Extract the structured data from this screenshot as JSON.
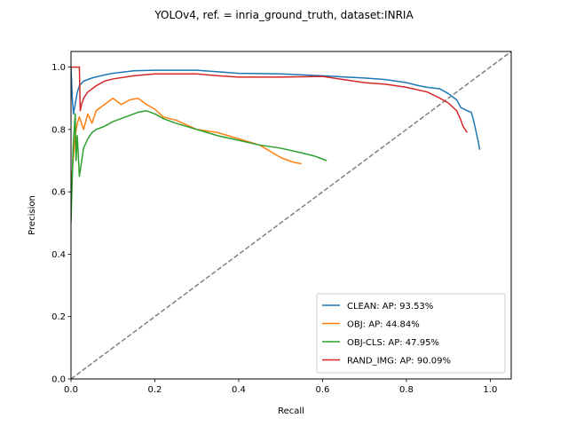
{
  "chart_data": {
    "type": "line",
    "title": "YOLOv4, ref. = inria_ground_truth, dataset:INRIA",
    "xlabel": "Recall",
    "ylabel": "Precision",
    "xlim": [
      0,
      1.05
    ],
    "ylim": [
      0,
      1.05
    ],
    "xticks": [
      "0.0",
      "0.2",
      "0.4",
      "0.6",
      "0.8",
      "1.0"
    ],
    "yticks": [
      "0.0",
      "0.2",
      "0.4",
      "0.6",
      "0.8",
      "1.0"
    ],
    "grid": false,
    "legend_position": "bottom-right",
    "reference_line": {
      "style": "dashed",
      "color": "#808080",
      "points": [
        [
          0,
          0
        ],
        [
          1.05,
          1.05
        ]
      ]
    },
    "series": [
      {
        "name": "CLEAN: AP: 93.53%",
        "color": "#1f77b4",
        "points": [
          [
            0.0,
            1.0
          ],
          [
            0.003,
            0.9
          ],
          [
            0.006,
            0.85
          ],
          [
            0.01,
            0.88
          ],
          [
            0.015,
            0.92
          ],
          [
            0.02,
            0.94
          ],
          [
            0.03,
            0.955
          ],
          [
            0.05,
            0.965
          ],
          [
            0.08,
            0.975
          ],
          [
            0.1,
            0.98
          ],
          [
            0.15,
            0.988
          ],
          [
            0.2,
            0.99
          ],
          [
            0.3,
            0.99
          ],
          [
            0.35,
            0.985
          ],
          [
            0.4,
            0.98
          ],
          [
            0.5,
            0.978
          ],
          [
            0.6,
            0.972
          ],
          [
            0.7,
            0.965
          ],
          [
            0.75,
            0.96
          ],
          [
            0.8,
            0.95
          ],
          [
            0.83,
            0.94
          ],
          [
            0.85,
            0.935
          ],
          [
            0.88,
            0.93
          ],
          [
            0.9,
            0.915
          ],
          [
            0.92,
            0.895
          ],
          [
            0.93,
            0.87
          ],
          [
            0.945,
            0.86
          ],
          [
            0.955,
            0.855
          ],
          [
            0.96,
            0.83
          ],
          [
            0.965,
            0.8
          ],
          [
            0.97,
            0.77
          ],
          [
            0.975,
            0.735
          ]
        ]
      },
      {
        "name": "OBJ: AP: 44.84%",
        "color": "#ff7f0e",
        "points": [
          [
            0.0,
            0.6
          ],
          [
            0.005,
            0.7
          ],
          [
            0.01,
            0.78
          ],
          [
            0.015,
            0.82
          ],
          [
            0.02,
            0.84
          ],
          [
            0.03,
            0.8
          ],
          [
            0.04,
            0.85
          ],
          [
            0.05,
            0.82
          ],
          [
            0.06,
            0.86
          ],
          [
            0.08,
            0.88
          ],
          [
            0.1,
            0.9
          ],
          [
            0.12,
            0.88
          ],
          [
            0.14,
            0.895
          ],
          [
            0.16,
            0.9
          ],
          [
            0.18,
            0.88
          ],
          [
            0.2,
            0.865
          ],
          [
            0.22,
            0.84
          ],
          [
            0.25,
            0.83
          ],
          [
            0.3,
            0.8
          ],
          [
            0.35,
            0.79
          ],
          [
            0.4,
            0.77
          ],
          [
            0.45,
            0.75
          ],
          [
            0.5,
            0.71
          ],
          [
            0.53,
            0.695
          ],
          [
            0.55,
            0.69
          ]
        ]
      },
      {
        "name": "OBJ-CLS: AP: 47.95%",
        "color": "#2ca02c",
        "points": [
          [
            0.0,
            0.5
          ],
          [
            0.005,
            0.74
          ],
          [
            0.01,
            0.85
          ],
          [
            0.012,
            0.7
          ],
          [
            0.015,
            0.78
          ],
          [
            0.02,
            0.65
          ],
          [
            0.03,
            0.74
          ],
          [
            0.04,
            0.77
          ],
          [
            0.05,
            0.79
          ],
          [
            0.06,
            0.8
          ],
          [
            0.08,
            0.81
          ],
          [
            0.1,
            0.825
          ],
          [
            0.12,
            0.835
          ],
          [
            0.14,
            0.845
          ],
          [
            0.16,
            0.855
          ],
          [
            0.18,
            0.86
          ],
          [
            0.2,
            0.85
          ],
          [
            0.22,
            0.835
          ],
          [
            0.25,
            0.82
          ],
          [
            0.3,
            0.8
          ],
          [
            0.35,
            0.78
          ],
          [
            0.4,
            0.765
          ],
          [
            0.45,
            0.75
          ],
          [
            0.5,
            0.74
          ],
          [
            0.55,
            0.725
          ],
          [
            0.58,
            0.715
          ],
          [
            0.6,
            0.705
          ],
          [
            0.61,
            0.7
          ]
        ]
      },
      {
        "name": "RAND_IMG: AP: 90.09%",
        "color": "#d62728",
        "points": [
          [
            0.0,
            1.0
          ],
          [
            0.02,
            1.0
          ],
          [
            0.022,
            0.86
          ],
          [
            0.025,
            0.88
          ],
          [
            0.03,
            0.9
          ],
          [
            0.04,
            0.92
          ],
          [
            0.06,
            0.94
          ],
          [
            0.08,
            0.955
          ],
          [
            0.1,
            0.962
          ],
          [
            0.15,
            0.972
          ],
          [
            0.2,
            0.978
          ],
          [
            0.3,
            0.978
          ],
          [
            0.35,
            0.972
          ],
          [
            0.4,
            0.968
          ],
          [
            0.5,
            0.968
          ],
          [
            0.6,
            0.97
          ],
          [
            0.65,
            0.96
          ],
          [
            0.7,
            0.95
          ],
          [
            0.75,
            0.945
          ],
          [
            0.8,
            0.935
          ],
          [
            0.85,
            0.92
          ],
          [
            0.88,
            0.9
          ],
          [
            0.9,
            0.885
          ],
          [
            0.92,
            0.86
          ],
          [
            0.93,
            0.83
          ],
          [
            0.935,
            0.81
          ],
          [
            0.94,
            0.8
          ],
          [
            0.945,
            0.79
          ]
        ]
      }
    ]
  }
}
